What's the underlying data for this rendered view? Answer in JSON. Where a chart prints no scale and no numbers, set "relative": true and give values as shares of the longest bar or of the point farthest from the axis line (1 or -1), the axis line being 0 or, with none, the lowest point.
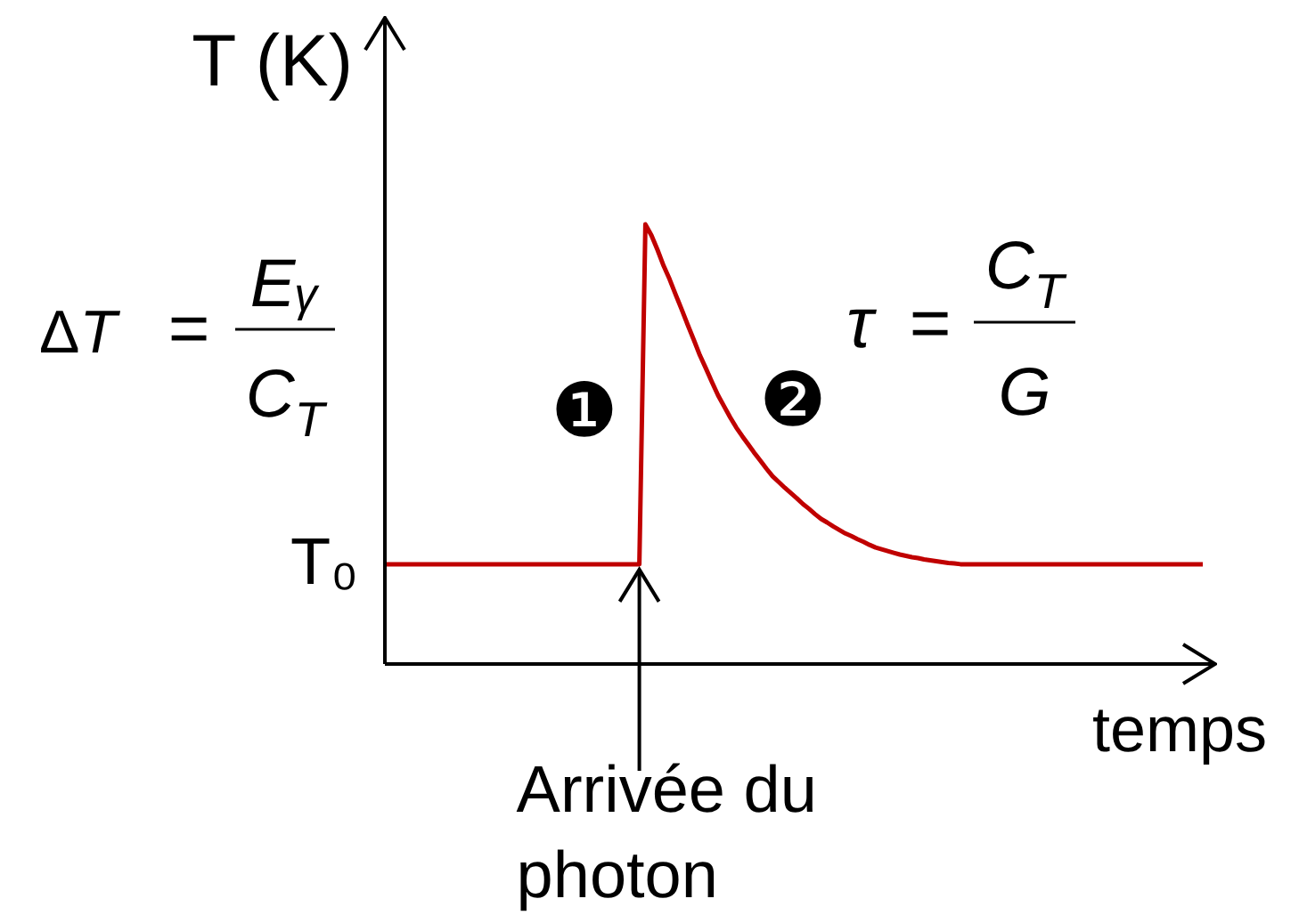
{
  "chart_data": {
    "type": "line",
    "relative": true,
    "ylabel": "T (K)",
    "xlabel": "temps",
    "categories": [
      null,
      null,
      null,
      null,
      null,
      null,
      null,
      null,
      null,
      null,
      null,
      null,
      null,
      null,
      null,
      null,
      null,
      null,
      null,
      null,
      null,
      null,
      null,
      null,
      null,
      null,
      null,
      null,
      null,
      null,
      null,
      null,
      null,
      null,
      null,
      null,
      null,
      null,
      null,
      null,
      null,
      null,
      null,
      null,
      null,
      null,
      null,
      null,
      null,
      null,
      null,
      null,
      null,
      null,
      null,
      null,
      null,
      null,
      null,
      null,
      null,
      null,
      null,
      null,
      null,
      null,
      null,
      null,
      null,
      null,
      null,
      null,
      null,
      null,
      null,
      null,
      null,
      null,
      null,
      null,
      null,
      null,
      null,
      null,
      null,
      null,
      null,
      null,
      null,
      null,
      null,
      null,
      null,
      null,
      null,
      null,
      null,
      null,
      null,
      null,
      null,
      null,
      null,
      null,
      null,
      null,
      null,
      null,
      null,
      null,
      null,
      null,
      null,
      null,
      null,
      null,
      null,
      null,
      null,
      null,
      null,
      null,
      null,
      null,
      null,
      null,
      null,
      null,
      null,
      null,
      null,
      null,
      null,
      null,
      null,
      null
    ],
    "values": [
      0.227,
      0.227,
      0.227,
      0.227,
      0.227,
      0.227,
      0.227,
      0.227,
      0.227,
      0.227,
      0.227,
      0.227,
      0.227,
      0.227,
      0.227,
      0.227,
      0.227,
      0.227,
      0.227,
      0.227,
      0.227,
      0.227,
      0.227,
      0.227,
      0.227,
      0.227,
      0.227,
      0.227,
      0.227,
      0.227,
      0.227,
      0.227,
      0.227,
      0.227,
      0.227,
      0.227,
      0.227,
      0.227,
      0.227,
      0.227,
      0.227,
      0.227,
      0.227,
      1,
      0.975,
      0.942,
      0.906,
      0.875,
      0.84,
      0.806,
      0.771,
      0.737,
      0.702,
      0.672,
      0.641,
      0.611,
      0.586,
      0.561,
      0.538,
      0.518,
      0.499,
      0.48,
      0.462,
      0.444,
      0.427,
      0.414,
      0.401,
      0.389,
      0.377,
      0.364,
      0.353,
      0.341,
      0.33,
      0.322,
      0.313,
      0.305,
      0.297,
      0.291,
      0.284,
      0.278,
      0.271,
      0.265,
      0.261,
      0.257,
      0.253,
      0.249,
      0.246,
      0.243,
      0.241,
      0.238,
      0.236,
      0.234,
      0.232,
      0.23,
      0.229,
      0.227,
      0.227,
      0.227,
      0.227,
      0.227,
      0.227,
      0.227,
      0.227,
      0.227,
      0.227,
      0.227,
      0.227,
      0.227,
      0.227,
      0.227,
      0.227,
      0.227,
      0.227,
      0.227,
      0.227,
      0.227,
      0.227,
      0.227,
      0.227,
      0.227,
      0.227,
      0.227,
      0.227,
      0.227,
      0.227,
      0.227,
      0.227,
      0.227,
      0.227,
      0.227,
      0.227,
      0.227,
      0.227,
      0.227,
      0.227,
      0.227
    ],
    "color": "#c00000",
    "marker": "none",
    "line_style": "solid",
    "annotations": [
      "T₀",
      "ΔT = Eᵧ C$_{T}$",
      "τ = C$_{T}$ G",
      "❶",
      "❷",
      "Arrivée du photon"
    ]
  }
}
